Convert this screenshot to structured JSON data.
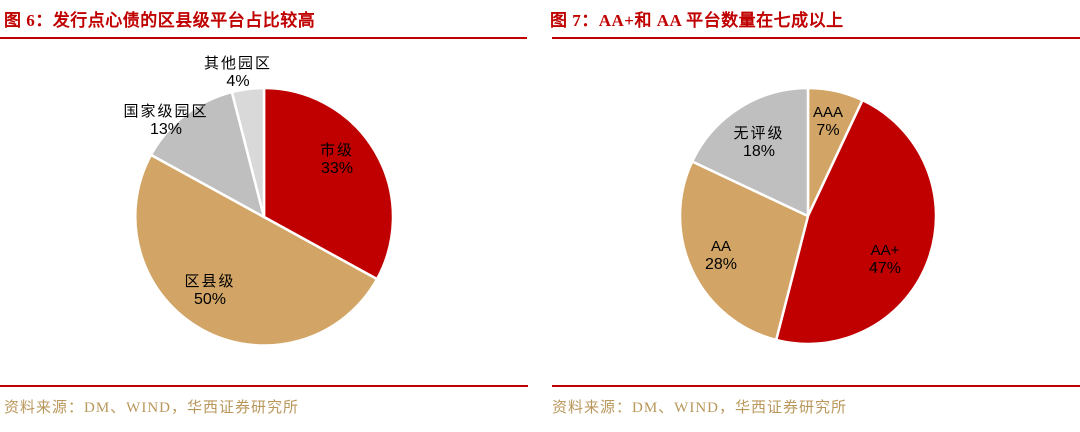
{
  "colors": {
    "accent_red": "#C00000",
    "tan": "#D2A566",
    "gray": "#BFBFBF",
    "light_gray": "#D9D9D9",
    "source_gold": "#B9975B",
    "label_text": "#000000"
  },
  "chart_data": [
    {
      "type": "pie",
      "title": "图 6：发行点心债的区县级平台占比较高",
      "source": "资料来源：DM、WIND，华西证券研究所",
      "start_angle_deg": 0,
      "direction": "clockwise",
      "legend_position": "none",
      "slices": [
        {
          "label": "市级",
          "value": 33,
          "pct": "33%",
          "color": "#C00000",
          "label_placement": "inside"
        },
        {
          "label": "区县级",
          "value": 50,
          "pct": "50%",
          "color": "#D2A566",
          "label_placement": "inside"
        },
        {
          "label": "国家级园区",
          "value": 13,
          "pct": "13%",
          "color": "#BFBFBF",
          "label_placement": "outside"
        },
        {
          "label": "其他园区",
          "value": 4,
          "pct": "4%",
          "color": "#D9D9D9",
          "label_placement": "outside"
        }
      ]
    },
    {
      "type": "pie",
      "title": "图 7：AA+和 AA 平台数量在七成以上",
      "source": "资料来源：DM、WIND，华西证券研究所",
      "start_angle_deg": 0,
      "direction": "clockwise",
      "legend_position": "none",
      "slices": [
        {
          "label": "AAA",
          "value": 7,
          "pct": "7%",
          "color": "#D2A566",
          "label_placement": "inside"
        },
        {
          "label": "AA+",
          "value": 47,
          "pct": "47%",
          "color": "#C00000",
          "label_placement": "inside"
        },
        {
          "label": "AA",
          "value": 28,
          "pct": "28%",
          "color": "#D2A566",
          "label_placement": "inside"
        },
        {
          "label": "无评级",
          "value": 18,
          "pct": "18%",
          "color": "#BFBFBF",
          "label_placement": "inside"
        }
      ]
    }
  ]
}
